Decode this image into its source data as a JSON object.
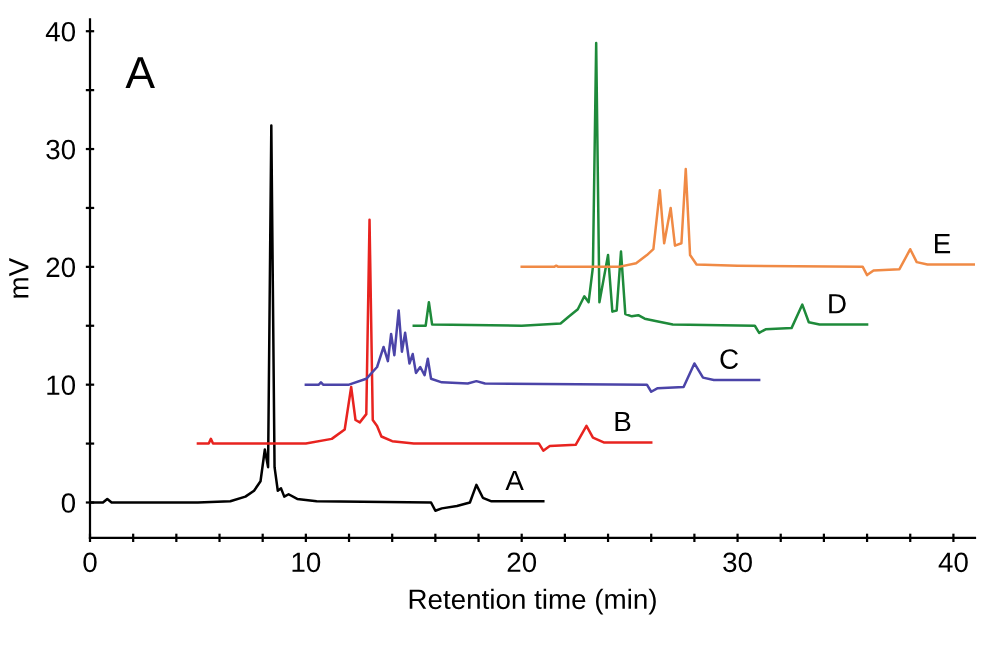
{
  "chart_data": {
    "type": "line",
    "xlabel": "Retention time (min)",
    "ylabel": "mV",
    "xlim": [
      0,
      41
    ],
    "ylim": [
      -3,
      41
    ],
    "xticks": [
      0,
      {
        "value": 2,
        "label": null
      },
      {
        "value": 4,
        "label": null
      },
      {
        "value": 6,
        "label": null
      },
      {
        "value": 8,
        "label": null
      },
      10,
      {
        "value": 12,
        "label": null
      },
      {
        "value": 14,
        "label": null
      },
      {
        "value": 16,
        "label": null
      },
      {
        "value": 18,
        "label": null
      },
      20,
      {
        "value": 22,
        "label": null
      },
      {
        "value": 24,
        "label": null
      },
      {
        "value": 26,
        "label": null
      },
      {
        "value": 28,
        "label": null
      },
      30,
      {
        "value": 32,
        "label": null
      },
      {
        "value": 34,
        "label": null
      },
      {
        "value": 36,
        "label": null
      },
      {
        "value": 38,
        "label": null
      },
      40
    ],
    "yticks": [
      0,
      {
        "value": 5,
        "label": null
      },
      10,
      {
        "value": 15,
        "label": null
      },
      20,
      {
        "value": 25,
        "label": null
      },
      30,
      {
        "value": 35,
        "label": null
      },
      40
    ],
    "grid": false,
    "marker": "none",
    "line_style": "solid",
    "series": [
      {
        "color": "#000000",
        "x": [
          0,
          0.6,
          0.8,
          1.0,
          5,
          6.5,
          7.2,
          7.6,
          7.9,
          8.1,
          8.25,
          8.4,
          8.55,
          8.7,
          8.85,
          9.0,
          9.2,
          9.6,
          10.5,
          15.8,
          16.0,
          16.3,
          17.0,
          17.6,
          17.9,
          18.2,
          18.6,
          21
        ],
        "values": [
          0,
          0,
          0.3,
          0,
          0,
          0.1,
          0.5,
          1.0,
          1.8,
          4.5,
          3.0,
          32,
          3.0,
          1.0,
          1.2,
          0.5,
          0.7,
          0.3,
          0.1,
          0,
          -0.7,
          -0.5,
          -0.3,
          0,
          1.5,
          0.4,
          0.1,
          0.1
        ]
      },
      {
        "color": "#e8231f",
        "x": [
          5,
          5.5,
          5.6,
          5.7,
          10,
          11.2,
          11.8,
          12.1,
          12.3,
          12.5,
          12.8,
          12.95,
          13.1,
          13.3,
          13.5,
          14,
          15,
          20.8,
          21.0,
          21.3,
          22.5,
          23.0,
          23.3,
          23.8,
          26
        ],
        "values": [
          5,
          5,
          5.4,
          5,
          5,
          5.4,
          6.2,
          9.8,
          7.0,
          6.8,
          7.5,
          24,
          7.0,
          6.5,
          5.6,
          5.2,
          5,
          5,
          4.4,
          4.8,
          4.9,
          6.5,
          5.5,
          5.1,
          5.1
        ]
      },
      {
        "color": "#4b44a8",
        "x": [
          10,
          10.6,
          10.7,
          10.8,
          12,
          12.8,
          13.3,
          13.6,
          13.8,
          13.95,
          14.1,
          14.3,
          14.45,
          14.6,
          14.8,
          14.95,
          15.1,
          15.3,
          15.5,
          15.65,
          15.8,
          16.3,
          17.5,
          17.9,
          18.3,
          25.8,
          26.0,
          26.3,
          27.5,
          28.0,
          28.4,
          28.9,
          31
        ],
        "values": [
          10,
          10,
          10.2,
          10,
          10,
          10.5,
          11.5,
          13.2,
          12.0,
          14.3,
          12.5,
          16.3,
          12.8,
          14.4,
          11.8,
          12.6,
          11.0,
          11.5,
          10.8,
          12.2,
          10.5,
          10.2,
          10.1,
          10.3,
          10.1,
          10,
          9.4,
          9.7,
          9.8,
          11.8,
          10.6,
          10.4,
          10.4
        ]
      },
      {
        "color": "#1e8a3a",
        "x": [
          15,
          15.55,
          15.7,
          15.85,
          20,
          21.8,
          22.2,
          22.6,
          22.9,
          23.1,
          23.3,
          23.45,
          23.6,
          23.8,
          24.0,
          24.2,
          24.4,
          24.6,
          24.8,
          25.1,
          25.4,
          25.7,
          26.2,
          27,
          30.8,
          31.0,
          31.3,
          32.5,
          33.0,
          33.3,
          33.8,
          36
        ],
        "values": [
          15,
          15,
          17.0,
          15.1,
          15,
          15.2,
          15.8,
          16.4,
          17.5,
          17.0,
          20,
          39,
          17.0,
          19.0,
          21,
          16.2,
          16.3,
          21.3,
          16.0,
          15.8,
          15.9,
          15.6,
          15.4,
          15.1,
          15,
          14.4,
          14.7,
          14.8,
          16.8,
          15.3,
          15.1,
          15.1
        ]
      },
      {
        "color": "#f08a45",
        "x": [
          20,
          21.5,
          21.6,
          21.7,
          24.5,
          25.3,
          25.8,
          26.1,
          26.4,
          26.6,
          26.9,
          27.1,
          27.4,
          27.6,
          27.8,
          28.1,
          30,
          35.8,
          36.0,
          36.3,
          37.5,
          38.0,
          38.3,
          38.8,
          41
        ],
        "values": [
          20,
          20,
          20.1,
          20,
          20,
          20.3,
          21,
          21.5,
          26.5,
          22,
          25,
          21.8,
          22,
          28.3,
          21.0,
          20.2,
          20.1,
          20,
          19.3,
          19.7,
          19.8,
          21.5,
          20.4,
          20.2,
          20.2
        ]
      }
    ],
    "annotations": [
      "A",
      {
        "text": "A",
        "x": 20.4,
        "y": 0.1
      },
      {
        "text": "B",
        "x": 25.4,
        "y": 5.1
      },
      {
        "text": "C",
        "x": 30.3,
        "y": 10.4
      },
      {
        "text": "D",
        "x": 35.3,
        "y": 15.1
      },
      {
        "text": "E",
        "x": 40.2,
        "y": 20.2
      }
    ]
  }
}
